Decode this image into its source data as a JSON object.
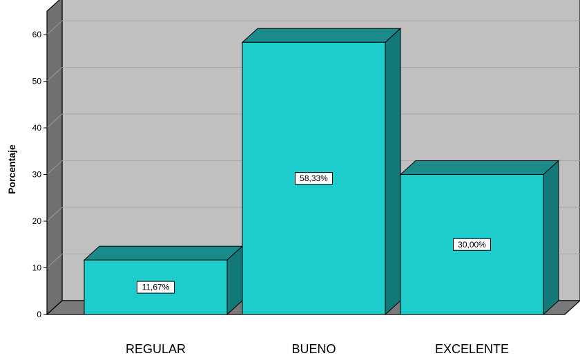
{
  "chart_data": {
    "type": "bar",
    "ylabel": "Porcentaje",
    "xlabel": "",
    "ylim": [
      0,
      65
    ],
    "yticks": [
      0,
      10,
      20,
      30,
      40,
      50,
      60
    ],
    "grid": true,
    "categories": [
      "REGULAR",
      "BUENO",
      "EXCELENTE"
    ],
    "values": [
      11.67,
      58.33,
      30.0
    ],
    "data_labels": [
      "11,67%",
      "58,33%",
      "30,00%"
    ],
    "colors": {
      "bar_front": "#1ecccc",
      "bar_side": "#137878",
      "bar_top": "#1a8a8a",
      "back_wall": "#c0c0c0",
      "left_wall": "#707070",
      "floor": "#7a7a7a"
    }
  }
}
